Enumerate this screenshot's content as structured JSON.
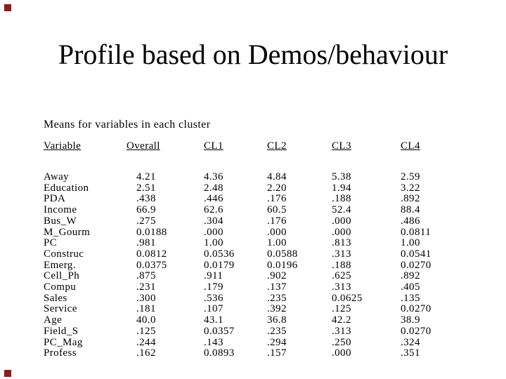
{
  "slide": {
    "title": "Profile based on Demos/behaviour",
    "table_caption": "Means for variables in each cluster",
    "decor_color": "#8b1c1c",
    "background_color": "#ffffff",
    "text_color": "#000000"
  },
  "table": {
    "columns": [
      "Variable",
      "Overall",
      "CL1",
      "CL2",
      "CL3",
      "CL4"
    ],
    "rows": [
      [
        "Away",
        "4.21",
        "4.36",
        "4.84",
        "5.38",
        "2.59"
      ],
      [
        "Education",
        "2.51",
        "2.48",
        "2.20",
        "1.94",
        "3.22"
      ],
      [
        "PDA",
        ".438",
        ".446",
        ".176",
        ".188",
        ".892"
      ],
      [
        "Income",
        "66.9",
        "62.6",
        "60.5",
        "52.4",
        "88.4"
      ],
      [
        "Bus_W",
        ".275",
        ".304",
        ".176",
        ".000",
        ".486"
      ],
      [
        "M_Gourm",
        "0.0188",
        ".000",
        ".000",
        ".000",
        "0.0811"
      ],
      [
        "PC",
        ".981",
        "1.00",
        "1.00",
        ".813",
        "1.00"
      ],
      [
        "Construc",
        "0.0812",
        "0.0536",
        "0.0588",
        ".313",
        "0.0541"
      ],
      [
        "Emerg.",
        "0.0375",
        "0.0179",
        "0.0196",
        ".188",
        "0.0270"
      ],
      [
        "Cell_Ph",
        ".875",
        ".911",
        ".902",
        ".625",
        ".892"
      ],
      [
        "Compu",
        ".231",
        ".179",
        ".137",
        ".313",
        ".405"
      ],
      [
        "Sales",
        ".300",
        ".536",
        ".235",
        "0.0625",
        ".135"
      ],
      [
        "Service",
        ".181",
        ".107",
        ".392",
        ".125",
        "0.0270"
      ],
      [
        "Age",
        "40.0",
        "43.1",
        "36.8",
        "42.2",
        "38.9"
      ],
      [
        "Field_S",
        ".125",
        "0.0357",
        ".235",
        ".313",
        "0.0270"
      ],
      [
        "PC_Mag",
        ".244",
        ".143",
        ".294",
        ".250",
        ".324"
      ],
      [
        "Profess",
        ".162",
        "0.0893",
        ".157",
        ".000",
        ".351"
      ]
    ]
  }
}
